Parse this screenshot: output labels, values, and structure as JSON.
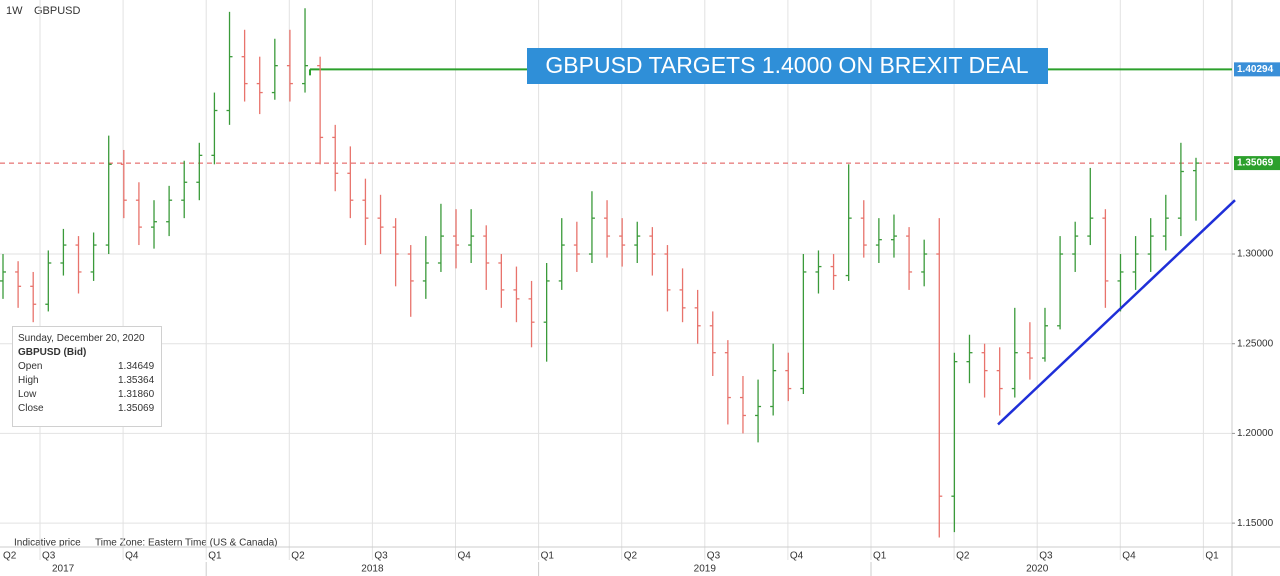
{
  "chart_data": {
    "type": "ohlc",
    "interval": "1W",
    "symbol": "GBPUSD",
    "up_color": "#3a9a3a",
    "down_color": "#e8736c",
    "ohlc": [
      [
        1.285,
        1.3,
        1.275,
        1.29
      ],
      [
        1.29,
        1.296,
        1.27,
        1.282
      ],
      [
        1.282,
        1.29,
        1.262,
        1.272
      ],
      [
        1.272,
        1.302,
        1.268,
        1.295
      ],
      [
        1.295,
        1.314,
        1.288,
        1.305
      ],
      [
        1.305,
        1.31,
        1.278,
        1.29
      ],
      [
        1.29,
        1.312,
        1.285,
        1.305
      ],
      [
        1.305,
        1.366,
        1.3,
        1.35
      ],
      [
        1.35,
        1.358,
        1.32,
        1.33
      ],
      [
        1.33,
        1.34,
        1.305,
        1.315
      ],
      [
        1.315,
        1.33,
        1.303,
        1.318
      ],
      [
        1.318,
        1.338,
        1.31,
        1.33
      ],
      [
        1.33,
        1.352,
        1.32,
        1.34
      ],
      [
        1.34,
        1.362,
        1.33,
        1.355
      ],
      [
        1.355,
        1.39,
        1.35,
        1.38
      ],
      [
        1.38,
        1.435,
        1.372,
        1.41
      ],
      [
        1.41,
        1.425,
        1.385,
        1.395
      ],
      [
        1.395,
        1.41,
        1.378,
        1.39
      ],
      [
        1.39,
        1.42,
        1.386,
        1.405
      ],
      [
        1.405,
        1.425,
        1.385,
        1.395
      ],
      [
        1.395,
        1.437,
        1.39,
        1.405
      ],
      [
        1.405,
        1.41,
        1.35,
        1.365
      ],
      [
        1.365,
        1.372,
        1.335,
        1.345
      ],
      [
        1.345,
        1.36,
        1.32,
        1.33
      ],
      [
        1.33,
        1.342,
        1.305,
        1.32
      ],
      [
        1.32,
        1.333,
        1.3,
        1.315
      ],
      [
        1.315,
        1.32,
        1.282,
        1.3
      ],
      [
        1.3,
        1.305,
        1.265,
        1.285
      ],
      [
        1.285,
        1.31,
        1.275,
        1.295
      ],
      [
        1.295,
        1.328,
        1.29,
        1.31
      ],
      [
        1.31,
        1.325,
        1.292,
        1.305
      ],
      [
        1.305,
        1.325,
        1.295,
        1.31
      ],
      [
        1.31,
        1.316,
        1.28,
        1.295
      ],
      [
        1.295,
        1.3,
        1.27,
        1.28
      ],
      [
        1.28,
        1.293,
        1.262,
        1.275
      ],
      [
        1.275,
        1.285,
        1.248,
        1.262
      ],
      [
        1.262,
        1.295,
        1.24,
        1.285
      ],
      [
        1.285,
        1.32,
        1.28,
        1.305
      ],
      [
        1.305,
        1.318,
        1.29,
        1.3
      ],
      [
        1.3,
        1.335,
        1.295,
        1.32
      ],
      [
        1.32,
        1.33,
        1.298,
        1.31
      ],
      [
        1.31,
        1.32,
        1.293,
        1.305
      ],
      [
        1.305,
        1.318,
        1.295,
        1.31
      ],
      [
        1.31,
        1.315,
        1.288,
        1.3
      ],
      [
        1.3,
        1.305,
        1.268,
        1.28
      ],
      [
        1.28,
        1.292,
        1.262,
        1.27
      ],
      [
        1.27,
        1.28,
        1.25,
        1.26
      ],
      [
        1.26,
        1.268,
        1.232,
        1.245
      ],
      [
        1.245,
        1.252,
        1.205,
        1.22
      ],
      [
        1.22,
        1.232,
        1.2,
        1.21
      ],
      [
        1.21,
        1.23,
        1.195,
        1.215
      ],
      [
        1.215,
        1.25,
        1.21,
        1.235
      ],
      [
        1.235,
        1.245,
        1.218,
        1.225
      ],
      [
        1.225,
        1.3,
        1.222,
        1.29
      ],
      [
        1.29,
        1.302,
        1.278,
        1.293
      ],
      [
        1.293,
        1.3,
        1.28,
        1.288
      ],
      [
        1.288,
        1.35,
        1.285,
        1.32
      ],
      [
        1.32,
        1.33,
        1.298,
        1.305
      ],
      [
        1.305,
        1.32,
        1.295,
        1.308
      ],
      [
        1.308,
        1.322,
        1.298,
        1.31
      ],
      [
        1.31,
        1.315,
        1.28,
        1.29
      ],
      [
        1.29,
        1.308,
        1.282,
        1.3
      ],
      [
        1.3,
        1.32,
        1.142,
        1.165
      ],
      [
        1.165,
        1.245,
        1.145,
        1.24
      ],
      [
        1.24,
        1.255,
        1.228,
        1.245
      ],
      [
        1.245,
        1.25,
        1.22,
        1.235
      ],
      [
        1.235,
        1.248,
        1.21,
        1.225
      ],
      [
        1.225,
        1.27,
        1.22,
        1.245
      ],
      [
        1.245,
        1.262,
        1.23,
        1.242
      ],
      [
        1.242,
        1.27,
        1.24,
        1.26
      ],
      [
        1.26,
        1.31,
        1.258,
        1.3
      ],
      [
        1.3,
        1.318,
        1.29,
        1.31
      ],
      [
        1.31,
        1.348,
        1.305,
        1.32
      ],
      [
        1.32,
        1.325,
        1.27,
        1.285
      ],
      [
        1.285,
        1.3,
        1.268,
        1.29
      ],
      [
        1.29,
        1.31,
        1.28,
        1.3
      ],
      [
        1.3,
        1.32,
        1.29,
        1.31
      ],
      [
        1.31,
        1.333,
        1.302,
        1.32
      ],
      [
        1.32,
        1.362,
        1.31,
        1.346
      ],
      [
        1.34649,
        1.35364,
        1.3186,
        1.35069
      ]
    ],
    "ylim": [
      1.1378,
      1.4416
    ],
    "yticks": [
      {
        "value": 1.15,
        "label": "1.15000"
      },
      {
        "value": 1.2,
        "label": "1.20000"
      },
      {
        "value": 1.25,
        "label": "1.25000"
      },
      {
        "value": 1.3,
        "label": "1.30000"
      }
    ],
    "grid": true,
    "quarters": [
      "Q2",
      "Q3",
      "Q4",
      "Q1",
      "Q2",
      "Q3",
      "Q4",
      "Q1",
      "Q2",
      "Q3",
      "Q4",
      "Q1",
      "Q2",
      "Q3",
      "Q4",
      "Q1"
    ],
    "years": [
      "2017",
      "2018",
      "2019",
      "2020"
    ],
    "target_line": {
      "value": 1.40294,
      "color": "#2ca02c",
      "label_color": "#3a8fd8"
    },
    "last_price_line": {
      "value": 1.35069,
      "color": "#e05050",
      "label_color": "#2ca02c"
    },
    "trendline": {
      "values": [
        1.205,
        1.33
      ],
      "color": "#1f2fd8"
    },
    "annotation": "GBPUSD TARGETS 1.4000 ON BREXIT DEAL",
    "footer": {
      "note": "Indicative price",
      "timezone": "Time Zone: Eastern Time (US & Canada)"
    },
    "info_box": {
      "date": "Sunday, December 20, 2020",
      "instrument": "GBPUSD (Bid)",
      "rows": [
        [
          "Open",
          "1.34649"
        ],
        [
          "High",
          "1.35364"
        ],
        [
          "Low",
          "1.31860"
        ],
        [
          "Close",
          "1.35069"
        ]
      ]
    }
  }
}
